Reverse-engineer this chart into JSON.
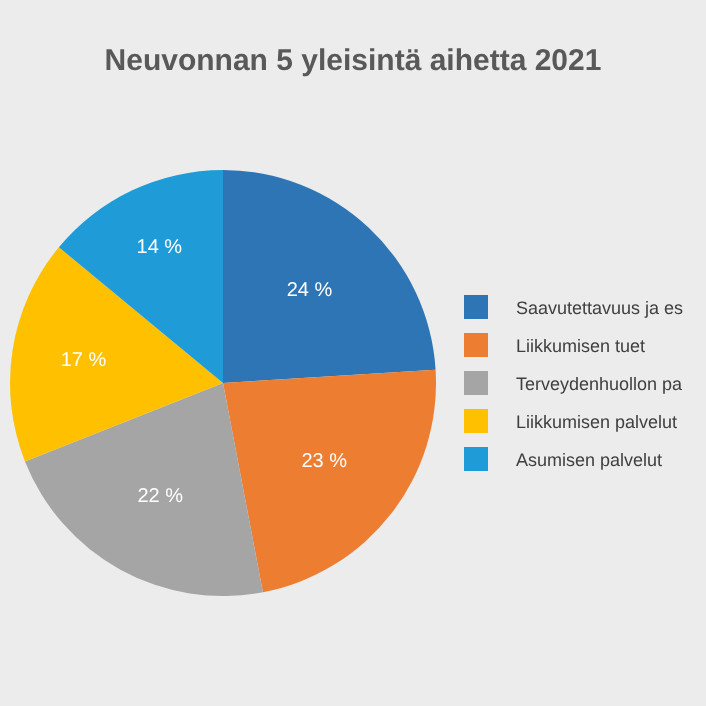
{
  "chart_data": {
    "type": "pie",
    "title": "Neuvonnan 5 yleisintä aihetta 2021",
    "categories": [
      "Saavutettavuus ja es",
      "Liikkumisen tuet",
      "Terveydenhuollon pa",
      "Liikkumisen palvelut",
      "Asumisen palvelut"
    ],
    "values": [
      24,
      23,
      22,
      17,
      14
    ],
    "value_labels": [
      "24 %",
      "23 %",
      "22 %",
      "17 %",
      "14 %"
    ],
    "colors": [
      "#2e75b6",
      "#ed7d31",
      "#a5a5a5",
      "#ffc000",
      "#1f9bd7"
    ],
    "legend": "right"
  }
}
